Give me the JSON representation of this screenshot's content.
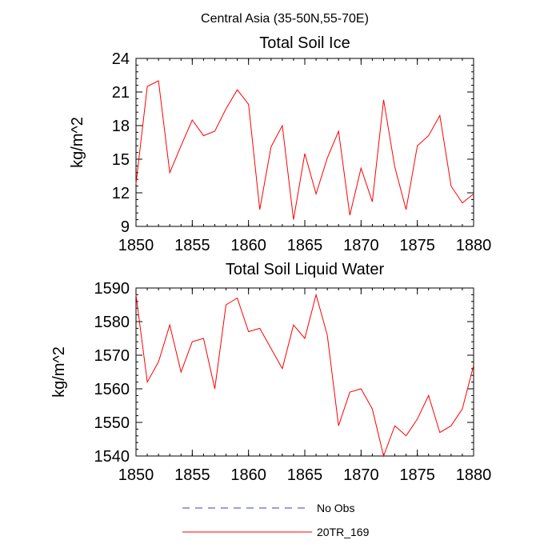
{
  "figure": {
    "title": "Central Asia (35-50N,55-70E)"
  },
  "colors": {
    "series_line": "#ff0000",
    "no_obs_line": "#3b3bd9",
    "axis": "#000000"
  },
  "legend": {
    "items": [
      {
        "label": "No Obs",
        "style": "dashed",
        "color": "#3b3bd9"
      },
      {
        "label": "20TR_169",
        "style": "solid",
        "color": "#ff0000"
      }
    ]
  },
  "chart_data": [
    {
      "type": "line",
      "title": "Total Soil Ice",
      "xlabel": "",
      "ylabel": "kg/m^2",
      "xlim": [
        1850,
        1880
      ],
      "ylim": [
        9,
        24
      ],
      "xticks": [
        1850,
        1855,
        1860,
        1865,
        1870,
        1875,
        1880
      ],
      "yticks": [
        9,
        12,
        15,
        18,
        21,
        24
      ],
      "grid": false,
      "x": [
        1850,
        1851,
        1852,
        1853,
        1854,
        1855,
        1856,
        1857,
        1858,
        1859,
        1860,
        1861,
        1862,
        1863,
        1864,
        1865,
        1866,
        1867,
        1868,
        1869,
        1870,
        1871,
        1872,
        1873,
        1874,
        1875,
        1876,
        1877,
        1878,
        1879,
        1880
      ],
      "series": [
        {
          "name": "20TR_169",
          "values": [
            12.8,
            21.5,
            22.0,
            13.8,
            16.2,
            18.5,
            17.1,
            17.5,
            19.5,
            21.2,
            19.9,
            10.5,
            16.1,
            18.0,
            9.6,
            15.5,
            11.9,
            15.1,
            17.5,
            10.0,
            14.2,
            11.2,
            20.3,
            14.3,
            10.5,
            16.2,
            17.1,
            18.9,
            12.6,
            11.1,
            11.9
          ]
        }
      ]
    },
    {
      "type": "line",
      "title": "Total Soil Liquid Water",
      "xlabel": "",
      "ylabel": "kg/m^2",
      "xlim": [
        1850,
        1880
      ],
      "ylim": [
        1540,
        1590
      ],
      "xticks": [
        1850,
        1855,
        1860,
        1865,
        1870,
        1875,
        1880
      ],
      "yticks": [
        1540,
        1550,
        1560,
        1570,
        1580,
        1590
      ],
      "grid": false,
      "x": [
        1850,
        1851,
        1852,
        1853,
        1854,
        1855,
        1856,
        1857,
        1858,
        1859,
        1860,
        1861,
        1862,
        1863,
        1864,
        1865,
        1866,
        1867,
        1868,
        1869,
        1870,
        1871,
        1872,
        1873,
        1874,
        1875,
        1876,
        1877,
        1878,
        1879,
        1880
      ],
      "series": [
        {
          "name": "20TR_169",
          "values": [
            1588,
            1562,
            1568,
            1579,
            1565,
            1574,
            1575,
            1560,
            1585,
            1587,
            1577,
            1578,
            1572,
            1566,
            1579,
            1575,
            1588,
            1576,
            1549,
            1559,
            1560,
            1554,
            1540,
            1549,
            1546,
            1551,
            1558,
            1547,
            1549,
            1554,
            1567
          ]
        }
      ]
    }
  ]
}
